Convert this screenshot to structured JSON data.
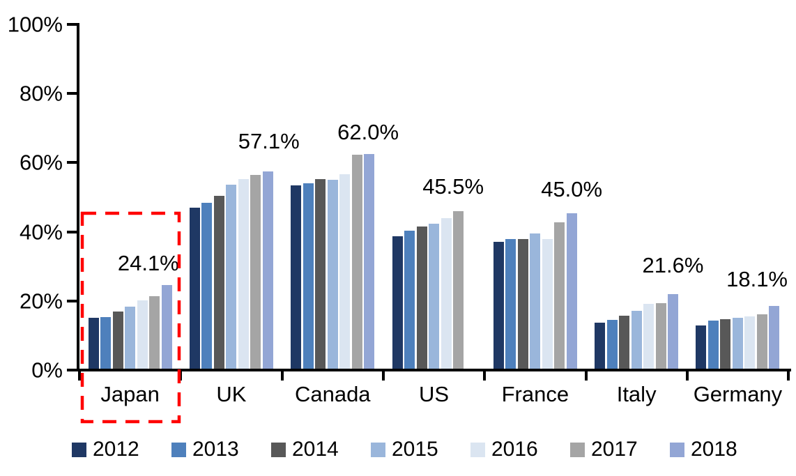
{
  "chart_data": {
    "type": "bar",
    "title": "",
    "xlabel": "",
    "ylabel": "",
    "categories": [
      "Japan",
      "UK",
      "Canada",
      "US",
      "France",
      "Italy",
      "Germany"
    ],
    "series": [
      {
        "name": "2012",
        "color": "#1F3864",
        "values": [
          14.8,
          46.5,
          53.0,
          38.4,
          36.6,
          13.3,
          12.5
        ]
      },
      {
        "name": "2013",
        "color": "#4E80BC",
        "values": [
          15.0,
          47.9,
          53.7,
          40.0,
          37.6,
          14.1,
          13.9
        ]
      },
      {
        "name": "2014",
        "color": "#585858",
        "values": [
          16.6,
          50.1,
          54.9,
          41.2,
          37.6,
          15.4,
          14.3
        ]
      },
      {
        "name": "2015",
        "color": "#9AB6DB",
        "values": [
          18.0,
          53.3,
          54.7,
          42.0,
          39.2,
          16.8,
          14.7
        ]
      },
      {
        "name": "2016",
        "color": "#DBE5F1",
        "values": [
          19.8,
          54.9,
          56.2,
          43.6,
          37.4,
          18.8,
          15.2
        ]
      },
      {
        "name": "2017",
        "color": "#A5A5A5",
        "values": [
          21.0,
          56.0,
          61.8,
          45.5,
          42.4,
          19.0,
          15.8
        ]
      },
      {
        "name": "2018",
        "color": "#93A6D5",
        "values": [
          24.1,
          57.1,
          62.0,
          null,
          45.0,
          21.6,
          18.1
        ]
      }
    ],
    "data_labels": [
      "24.1%",
      "57.1%",
      "62.0%",
      "45.5%",
      "45.0%",
      "21.6%",
      "18.1%"
    ],
    "ylim": [
      0,
      100
    ],
    "yticks": [
      "0%",
      "20%",
      "40%",
      "60%",
      "80%",
      "100%"
    ],
    "ytick_values": [
      0,
      20,
      40,
      60,
      80,
      100
    ],
    "grid": false,
    "legend_position": "bottom",
    "annotation": {
      "type": "dashed-rectangle",
      "highlighted_category": "Japan",
      "color": "#FF0000"
    }
  }
}
